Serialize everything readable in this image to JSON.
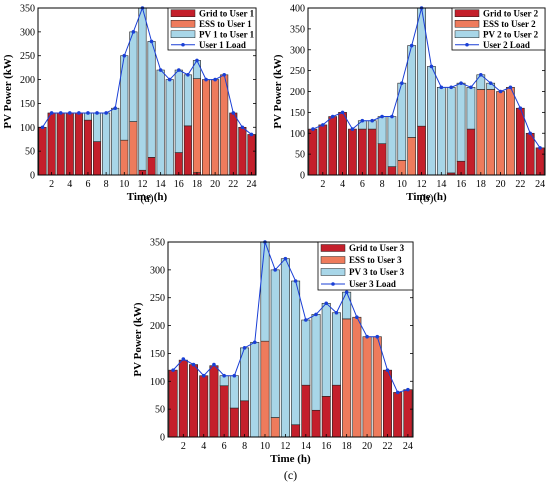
{
  "colors": {
    "grid": "#c41f2b",
    "ess": "#ee7b5c",
    "pv": "#a8d6e8",
    "load": "#1a3fd6",
    "bar_edge": "#222222"
  },
  "chart_data": [
    {
      "type": "bar",
      "panel_label": "(a)",
      "xlabel": "Time (h)",
      "ylabel": "PV Power (kW)",
      "ylim": [
        0,
        350
      ],
      "yticks": [
        0,
        50,
        100,
        150,
        200,
        250,
        300,
        350
      ],
      "xticks": [
        2,
        4,
        6,
        8,
        10,
        12,
        14,
        16,
        18,
        20,
        22,
        24
      ],
      "x": [
        1,
        2,
        3,
        4,
        5,
        6,
        7,
        8,
        9,
        10,
        11,
        12,
        13,
        14,
        15,
        16,
        17,
        18,
        19,
        20,
        21,
        22,
        23,
        24
      ],
      "stacked": true,
      "legend_position": "top-right",
      "series": [
        {
          "name": "Grid to User 1",
          "kind": "bar",
          "color_key": "grid",
          "values": [
            100,
            130,
            130,
            130,
            130,
            115,
            70,
            0,
            0,
            0,
            0,
            10,
            37,
            0,
            0,
            47,
            103,
            5,
            0,
            0,
            0,
            130,
            100,
            85
          ]
        },
        {
          "name": "ESS to User 1",
          "kind": "bar",
          "color_key": "ess",
          "values": [
            0,
            0,
            0,
            0,
            0,
            0,
            0,
            0,
            0,
            73,
            112,
            0,
            0,
            0,
            0,
            0,
            0,
            197,
            200,
            200,
            210,
            0,
            0,
            0
          ]
        },
        {
          "name": "PV 1 to User 1",
          "kind": "bar",
          "color_key": "pv",
          "values": [
            0,
            0,
            0,
            0,
            0,
            15,
            60,
            130,
            140,
            177,
            188,
            340,
            243,
            220,
            200,
            173,
            107,
            38,
            0,
            0,
            0,
            0,
            0,
            0
          ]
        },
        {
          "name": "User 1 Load",
          "kind": "line",
          "color_key": "load",
          "values": [
            100,
            130,
            130,
            130,
            130,
            130,
            130,
            130,
            140,
            250,
            300,
            350,
            280,
            220,
            200,
            220,
            210,
            240,
            200,
            200,
            210,
            130,
            100,
            85
          ]
        }
      ],
      "caption": "(a)"
    },
    {
      "type": "bar",
      "panel_label": "(b)",
      "xlabel": "Time (h)",
      "ylabel": "PV Power (kW)",
      "ylim": [
        0,
        400
      ],
      "yticks": [
        0,
        50,
        100,
        150,
        200,
        250,
        300,
        350,
        400
      ],
      "xticks": [
        2,
        4,
        6,
        8,
        10,
        12,
        14,
        16,
        18,
        20,
        22,
        24
      ],
      "x": [
        1,
        2,
        3,
        4,
        5,
        6,
        7,
        8,
        9,
        10,
        11,
        12,
        13,
        14,
        15,
        16,
        17,
        18,
        19,
        20,
        21,
        22,
        23,
        24
      ],
      "stacked": true,
      "legend_position": "top-right",
      "series": [
        {
          "name": "Grid to User 2",
          "kind": "bar",
          "color_key": "grid",
          "values": [
            110,
            120,
            140,
            150,
            110,
            110,
            110,
            75,
            20,
            0,
            0,
            117,
            0,
            0,
            5,
            33,
            110,
            0,
            0,
            0,
            0,
            160,
            100,
            65
          ]
        },
        {
          "name": "ESS to User 2",
          "kind": "bar",
          "color_key": "ess",
          "values": [
            0,
            0,
            0,
            0,
            0,
            0,
            0,
            0,
            0,
            35,
            90,
            0,
            0,
            0,
            0,
            0,
            0,
            205,
            205,
            200,
            210,
            0,
            0,
            0
          ]
        },
        {
          "name": "PV 2 to User 2",
          "kind": "bar",
          "color_key": "pv",
          "values": [
            0,
            0,
            0,
            0,
            0,
            20,
            20,
            65,
            120,
            185,
            220,
            283,
            260,
            210,
            205,
            187,
            100,
            35,
            15,
            0,
            0,
            0,
            0,
            0
          ]
        },
        {
          "name": "User 2 Load",
          "kind": "line",
          "color_key": "load",
          "values": [
            110,
            120,
            140,
            150,
            110,
            130,
            130,
            140,
            140,
            220,
            310,
            400,
            260,
            210,
            210,
            220,
            210,
            240,
            220,
            200,
            210,
            160,
            100,
            65
          ]
        }
      ],
      "caption": "(b)"
    },
    {
      "type": "bar",
      "panel_label": "(c)",
      "xlabel": "Time (h)",
      "ylabel": "PV Power (kW)",
      "ylim": [
        0,
        350
      ],
      "yticks": [
        0,
        50,
        100,
        150,
        200,
        250,
        300,
        350
      ],
      "xticks": [
        2,
        4,
        6,
        8,
        10,
        12,
        14,
        16,
        18,
        20,
        22,
        24
      ],
      "x": [
        1,
        2,
        3,
        4,
        5,
        6,
        7,
        8,
        9,
        10,
        11,
        12,
        13,
        14,
        15,
        16,
        17,
        18,
        19,
        20,
        21,
        22,
        23,
        24
      ],
      "stacked": true,
      "legend_position": "top-right",
      "series": [
        {
          "name": "Grid to User 3",
          "kind": "bar",
          "color_key": "grid",
          "values": [
            120,
            138,
            130,
            110,
            128,
            92,
            52,
            65,
            0,
            0,
            0,
            0,
            22,
            93,
            48,
            73,
            93,
            0,
            0,
            0,
            0,
            120,
            80,
            85
          ]
        },
        {
          "name": "ESS to User 3",
          "kind": "bar",
          "color_key": "ess",
          "values": [
            0,
            0,
            0,
            0,
            0,
            0,
            0,
            0,
            0,
            172,
            35,
            0,
            0,
            0,
            0,
            0,
            0,
            212,
            215,
            180,
            180,
            0,
            0,
            0
          ]
        },
        {
          "name": "PV 3 to User 3",
          "kind": "bar",
          "color_key": "pv",
          "values": [
            0,
            0,
            0,
            0,
            0,
            18,
            58,
            95,
            170,
            178,
            265,
            320,
            258,
            117,
            172,
            167,
            130,
            48,
            0,
            0,
            0,
            0,
            0,
            0
          ]
        },
        {
          "name": "User 3 Load",
          "kind": "line",
          "color_key": "load",
          "values": [
            120,
            140,
            130,
            110,
            130,
            110,
            110,
            160,
            170,
            350,
            300,
            320,
            280,
            210,
            220,
            240,
            223,
            260,
            215,
            180,
            180,
            120,
            80,
            85
          ]
        }
      ],
      "caption": "(c)"
    }
  ]
}
